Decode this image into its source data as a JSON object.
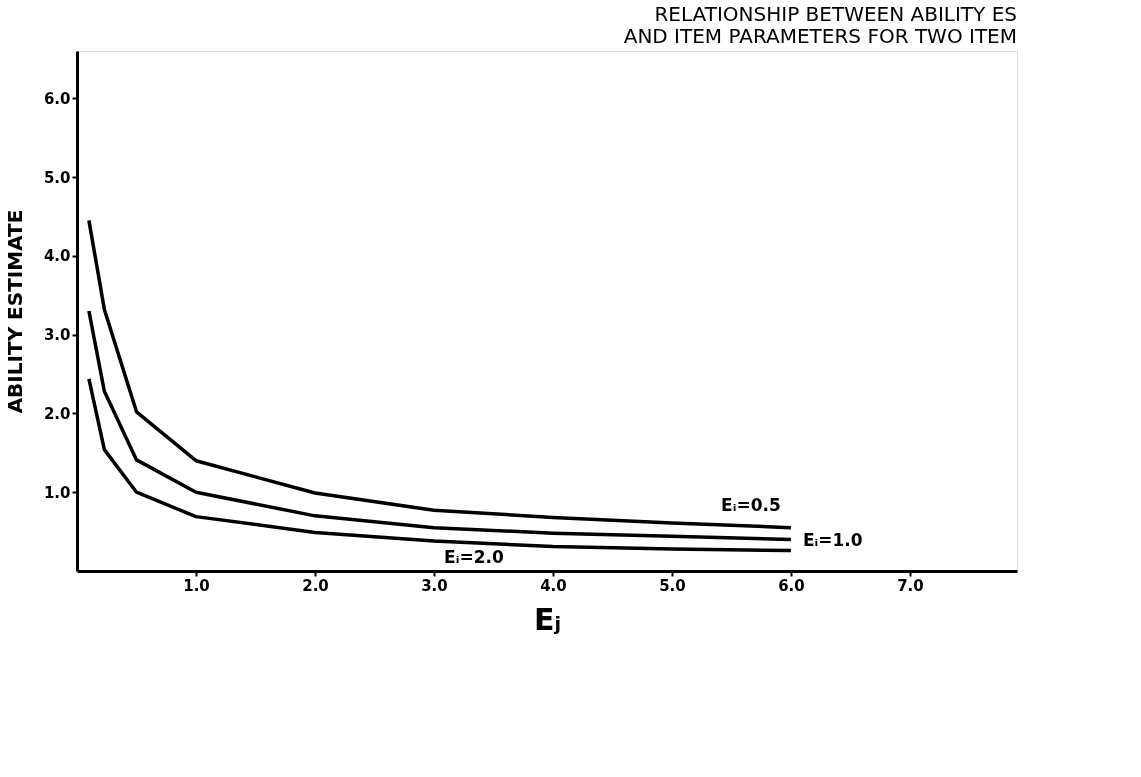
{
  "chart_data": {
    "type": "line",
    "title": [
      "RELATIONSHIP BETWEEN ABILITY ES",
      "AND ITEM PARAMETERS FOR TWO ITEM"
    ],
    "xlabel": "Eⱼ",
    "ylabel": "ABILITY ESTIMATE",
    "x": [
      0.1,
      0.23,
      0.5,
      1.0,
      2.0,
      3.0,
      4.0,
      5.0,
      6.0
    ],
    "series": [
      {
        "name": "Eᵢ=0.5",
        "color": "#000000",
        "values": [
          4.45,
          3.32,
          2.02,
          1.4,
          0.99,
          0.77,
          0.68,
          0.61,
          0.55
        ]
      },
      {
        "name": "Eᵢ=1.0",
        "color": "#000000",
        "values": [
          3.3,
          2.28,
          1.41,
          1.0,
          0.7,
          0.55,
          0.48,
          0.44,
          0.4
        ]
      },
      {
        "name": "Eᵢ=2.0",
        "color": "#000000",
        "values": [
          2.44,
          1.54,
          1.0,
          0.69,
          0.49,
          0.38,
          0.31,
          0.28,
          0.26
        ]
      }
    ],
    "xlim": [
      0,
      7.9
    ],
    "ylim": [
      0,
      6.6
    ],
    "xticks": [
      {
        "value": 1,
        "label": "1.0"
      },
      {
        "value": 2,
        "label": "2.0"
      },
      {
        "value": 3,
        "label": "3.0"
      },
      {
        "value": 4,
        "label": "4.0"
      },
      {
        "value": 5,
        "label": "5.0"
      },
      {
        "value": 6,
        "label": "6.0"
      },
      {
        "value": 7,
        "label": "7.0"
      }
    ],
    "yticks": [
      {
        "value": 1,
        "label": "1.0"
      },
      {
        "value": 2,
        "label": "2.0"
      },
      {
        "value": 3,
        "label": "3.0"
      },
      {
        "value": 4,
        "label": "4.0"
      },
      {
        "value": 5,
        "label": "5.0"
      },
      {
        "value": 6,
        "label": "6.0"
      }
    ],
    "grid": false,
    "legend": false,
    "marker": "none",
    "line_style": "solid"
  }
}
